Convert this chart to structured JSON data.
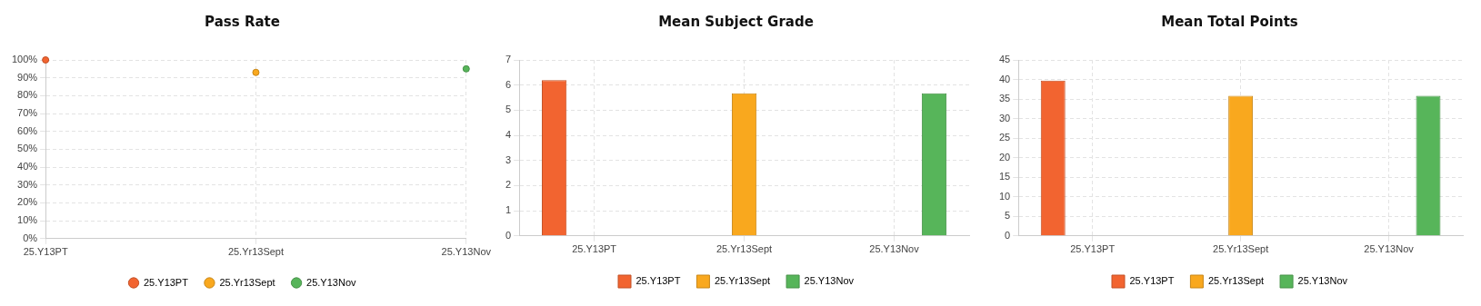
{
  "chart_data": [
    {
      "type": "scatter",
      "title": "Pass Rate",
      "categories": [
        "25.Y13PT",
        "25.Yr13Sept",
        "25.Y13Nov"
      ],
      "marker": "circle",
      "grid": true,
      "legend": "bottom",
      "series": [
        {
          "name": "25.Y13PT",
          "color": "#f26430",
          "values": [
            100,
            null,
            null
          ]
        },
        {
          "name": "25.Yr13Sept",
          "color": "#f9a81e",
          "values": [
            null,
            93,
            null
          ]
        },
        {
          "name": "25.Y13Nov",
          "color": "#57b55a",
          "values": [
            null,
            null,
            95
          ]
        }
      ],
      "ylim": [
        0,
        100
      ],
      "yticks": [
        {
          "value": 0,
          "label": "0%"
        },
        {
          "value": 10,
          "label": "10%"
        },
        {
          "value": 20,
          "label": "20%"
        },
        {
          "value": 30,
          "label": "30%"
        },
        {
          "value": 40,
          "label": "40%"
        },
        {
          "value": 50,
          "label": "50%"
        },
        {
          "value": 60,
          "label": "60%"
        },
        {
          "value": 70,
          "label": "70%"
        },
        {
          "value": 80,
          "label": "80%"
        },
        {
          "value": 90,
          "label": "90%"
        },
        {
          "value": 100,
          "label": "100%"
        }
      ]
    },
    {
      "type": "bar",
      "title": "Mean Subject Grade",
      "categories": [
        "25.Y13PT",
        "25.Yr13Sept",
        "25.Y13Nov"
      ],
      "grid": true,
      "legend": "bottom",
      "series": [
        {
          "name": "25.Y13PT",
          "color": "#f26430",
          "values": [
            6.2,
            null,
            null
          ]
        },
        {
          "name": "25.Yr13Sept",
          "color": "#f9a81e",
          "values": [
            null,
            5.67,
            null
          ]
        },
        {
          "name": "25.Y13Nov",
          "color": "#57b55a",
          "values": [
            null,
            null,
            5.67
          ]
        }
      ],
      "ylim": [
        0,
        7
      ],
      "yticks": [
        0,
        1,
        2,
        3,
        4,
        5,
        6,
        7
      ]
    },
    {
      "type": "bar",
      "title": "Mean Total Points",
      "categories": [
        "25.Y13PT",
        "25.Yr13Sept",
        "25.Y13Nov"
      ],
      "grid": true,
      "legend": "bottom",
      "series": [
        {
          "name": "25.Y13PT",
          "color": "#f26430",
          "values": [
            39.7,
            null,
            null
          ]
        },
        {
          "name": "25.Yr13Sept",
          "color": "#f9a81e",
          "values": [
            null,
            35.8,
            null
          ]
        },
        {
          "name": "25.Y13Nov",
          "color": "#57b55a",
          "values": [
            null,
            null,
            35.8
          ]
        }
      ],
      "ylim": [
        0,
        45
      ],
      "yticks": [
        0,
        5,
        10,
        15,
        20,
        25,
        30,
        35,
        40,
        45
      ]
    }
  ]
}
